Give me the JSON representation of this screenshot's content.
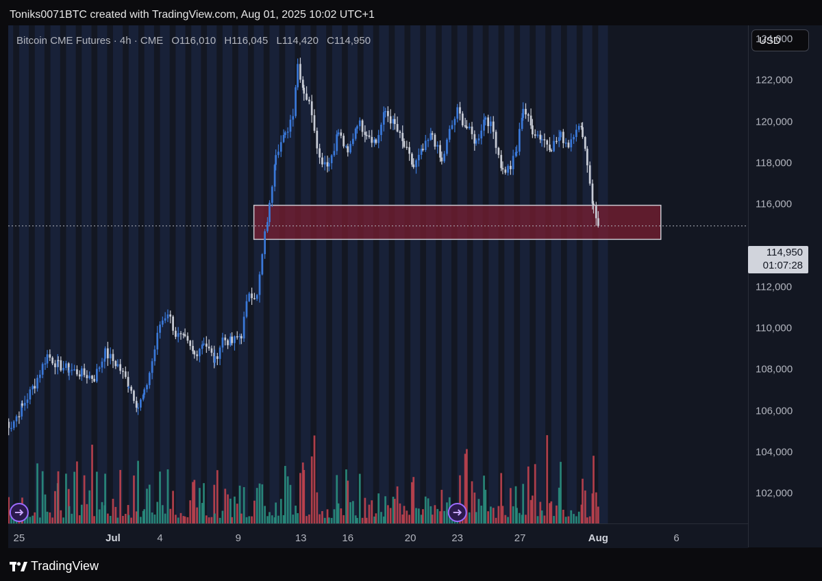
{
  "header": {
    "attribution": "Toniks0071BTC created with TradingView.com, Aug 01, 2025 10:02 UTC+1"
  },
  "legend": {
    "symbol": "Bitcoin CME Futures · 4h · CME",
    "open": "O116,010",
    "high": "H116,045",
    "low": "L114,420",
    "close": "C114,950"
  },
  "currency_button": "USD",
  "price_badge": {
    "price": "114,950",
    "countdown": "01:07:28"
  },
  "footer": {
    "brand": "TradingView"
  },
  "colors": {
    "up": "#3a78d8",
    "down": "#c8ccd6",
    "vol_up": "#2a8f7f",
    "vol_down": "#c0434f",
    "zone_fill": "#7a1f32",
    "zone_border": "#c8c8d0",
    "background": "#131722",
    "stripe": "#1d2a4a"
  },
  "icons": [
    "tradingview-logo-icon",
    "event-marker-icon"
  ],
  "chart_data": {
    "type": "candlestick",
    "timeframe": "4h",
    "ylim": [
      102000,
      124000
    ],
    "yticks": [
      {
        "value": 102000,
        "label": "102,000"
      },
      {
        "value": 104000,
        "label": "104,000"
      },
      {
        "value": 106000,
        "label": "106,000"
      },
      {
        "value": 108000,
        "label": "108,000"
      },
      {
        "value": 110000,
        "label": "110,000"
      },
      {
        "value": 112000,
        "label": "112,000"
      },
      {
        "value": 116000,
        "label": "116,000"
      },
      {
        "value": 118000,
        "label": "118,000"
      },
      {
        "value": 120000,
        "label": "120,000"
      },
      {
        "value": 122000,
        "label": "122,000"
      },
      {
        "value": 124000,
        "label": "124,000"
      }
    ],
    "xlim_days": [
      -7,
      41
    ],
    "xticks": [
      {
        "day": -6,
        "label": "25",
        "major": false
      },
      {
        "day": 0,
        "label": "Jul",
        "major": true
      },
      {
        "day": 3,
        "label": "4",
        "major": false
      },
      {
        "day": 8,
        "label": "9",
        "major": false
      },
      {
        "day": 12,
        "label": "13",
        "major": false
      },
      {
        "day": 15,
        "label": "16",
        "major": false
      },
      {
        "day": 19,
        "label": "20",
        "major": false
      },
      {
        "day": 22,
        "label": "23",
        "major": false
      },
      {
        "day": 26,
        "label": "27",
        "major": false
      },
      {
        "day": 31,
        "label": "Aug",
        "major": true
      },
      {
        "day": 36,
        "label": "6",
        "major": false
      }
    ],
    "last_price": 114950,
    "zone": {
      "from_day": 9.0,
      "to_day": 35.0,
      "low": 114300,
      "high": 115950
    },
    "event_markers": [
      -6,
      22
    ],
    "keypoints": [
      [
        -7.0,
        105500
      ],
      [
        -6.5,
        105300
      ],
      [
        -5.8,
        106200
      ],
      [
        -5.0,
        107300
      ],
      [
        -4.2,
        108700
      ],
      [
        -3.5,
        108200
      ],
      [
        -2.8,
        108000
      ],
      [
        -2.0,
        107800
      ],
      [
        -1.2,
        107600
      ],
      [
        -0.5,
        108800
      ],
      [
        0.3,
        108200
      ],
      [
        1.0,
        107300
      ],
      [
        1.6,
        106200
      ],
      [
        2.0,
        106800
      ],
      [
        2.5,
        108400
      ],
      [
        3.0,
        110200
      ],
      [
        3.5,
        110800
      ],
      [
        4.0,
        109700
      ],
      [
        4.6,
        109400
      ],
      [
        5.2,
        108700
      ],
      [
        5.8,
        109400
      ],
      [
        6.5,
        108400
      ],
      [
        7.0,
        109500
      ],
      [
        7.6,
        109300
      ],
      [
        8.2,
        109700
      ],
      [
        8.7,
        111800
      ],
      [
        9.2,
        111500
      ],
      [
        9.7,
        114500
      ],
      [
        10.0,
        115900
      ],
      [
        10.4,
        118600
      ],
      [
        11.0,
        119300
      ],
      [
        11.5,
        120500
      ],
      [
        11.8,
        122800
      ],
      [
        12.2,
        121500
      ],
      [
        12.7,
        120500
      ],
      [
        13.2,
        118200
      ],
      [
        13.8,
        118000
      ],
      [
        14.4,
        119500
      ],
      [
        15.0,
        118400
      ],
      [
        15.6,
        120000
      ],
      [
        16.2,
        119500
      ],
      [
        16.8,
        119000
      ],
      [
        17.4,
        120500
      ],
      [
        18.0,
        119800
      ],
      [
        18.6,
        118800
      ],
      [
        19.2,
        117800
      ],
      [
        19.8,
        118600
      ],
      [
        20.4,
        119400
      ],
      [
        21.0,
        118000
      ],
      [
        21.5,
        119500
      ],
      [
        22.0,
        120500
      ],
      [
        22.6,
        119700
      ],
      [
        23.2,
        119000
      ],
      [
        23.8,
        120300
      ],
      [
        24.3,
        119500
      ],
      [
        24.9,
        117600
      ],
      [
        25.4,
        117800
      ],
      [
        25.8,
        118600
      ],
      [
        26.2,
        120700
      ],
      [
        26.8,
        119600
      ],
      [
        27.4,
        119200
      ],
      [
        28.0,
        118800
      ],
      [
        28.6,
        119300
      ],
      [
        29.1,
        118900
      ],
      [
        29.6,
        119800
      ],
      [
        30.0,
        119500
      ],
      [
        30.3,
        118000
      ],
      [
        30.7,
        115800
      ],
      [
        31.0,
        114950
      ]
    ],
    "volume_scale": 161000
  }
}
